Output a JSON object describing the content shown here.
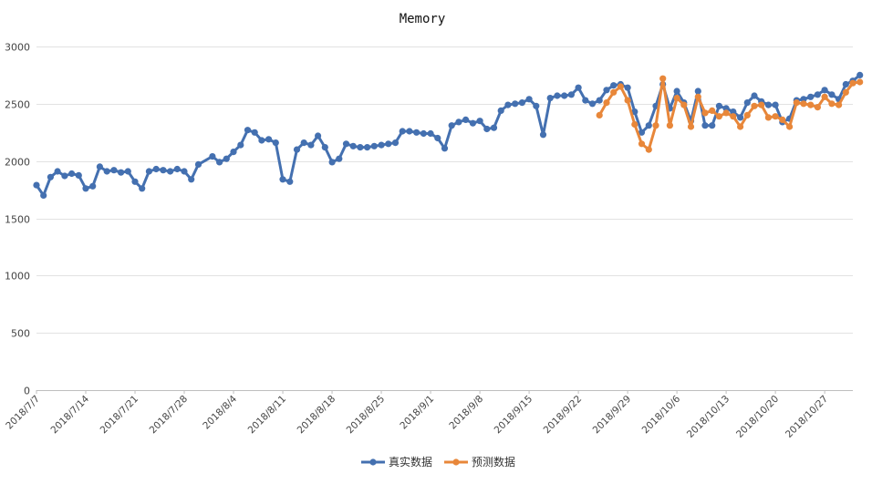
{
  "chart_data": {
    "type": "line",
    "title": "Memory",
    "xlabel": "",
    "ylabel": "",
    "ylim": [
      0,
      3000
    ],
    "yticks": [
      0,
      500,
      1000,
      1500,
      2000,
      2500,
      3000
    ],
    "x_tick_labels": [
      "2018/7/7",
      "2018/7/14",
      "2018/7/21",
      "2018/7/28",
      "2018/8/4",
      "2018/8/11",
      "2018/8/18",
      "2018/8/25",
      "2018/9/1",
      "2018/9/8",
      "2018/9/15",
      "2018/9/22",
      "2018/9/29",
      "2018/10/6",
      "2018/10/13",
      "2018/10/20",
      "2018/10/27"
    ],
    "x_start": "2018/7/7",
    "x_end": "2018/10/31",
    "grid": true,
    "legend_position": "bottom",
    "series": [
      {
        "name": "真实数据",
        "color": "#4470b0",
        "start": "2018/7/7",
        "values": [
          1790,
          1700,
          1860,
          1910,
          1870,
          1890,
          1875,
          1760,
          1780,
          1950,
          1910,
          1920,
          1900,
          1910,
          1820,
          1760,
          1910,
          1930,
          1920,
          1910,
          1930,
          1910,
          1840,
          1970,
          null,
          2040,
          1990,
          2020,
          2080,
          2140,
          2270,
          2250,
          2180,
          2190,
          2160,
          1840,
          1820,
          2100,
          2160,
          2140,
          2220,
          2120,
          1990,
          2020,
          2150,
          2130,
          2120,
          2120,
          2130,
          2140,
          2150,
          2160,
          2260,
          2260,
          2250,
          2240,
          2240,
          2200,
          2110,
          2310,
          2340,
          2360,
          2330,
          2350,
          2280,
          2290,
          2440,
          2490,
          2500,
          2510,
          2540,
          2480,
          2230,
          2550,
          2570,
          2570,
          2580,
          2640,
          2530,
          2500,
          2530,
          2620,
          2660,
          2670,
          2640,
          2430,
          2250,
          2310,
          2480,
          2670,
          2460,
          2610,
          2510,
          2350,
          2610,
          2310,
          2310,
          2480,
          2460,
          2430,
          2380,
          2510,
          2570,
          2520,
          2490,
          2490,
          2340,
          2370,
          2530,
          2540,
          2560,
          2580,
          2620,
          2580,
          2540,
          2670,
          2700,
          2750
        ]
      },
      {
        "name": "预测数据",
        "color": "#e8873a",
        "start": "2018/9/25",
        "values": [
          2400,
          2510,
          2600,
          2650,
          2530,
          2320,
          2150,
          2100,
          2310,
          2720,
          2310,
          2550,
          2490,
          2300,
          2560,
          2420,
          2440,
          2390,
          2420,
          2390,
          2300,
          2400,
          2480,
          2490,
          2380,
          2390,
          2360,
          2300,
          2510,
          2500,
          2490,
          2470,
          2560,
          2500,
          2490,
          2600,
          2680,
          2690
        ]
      }
    ]
  }
}
